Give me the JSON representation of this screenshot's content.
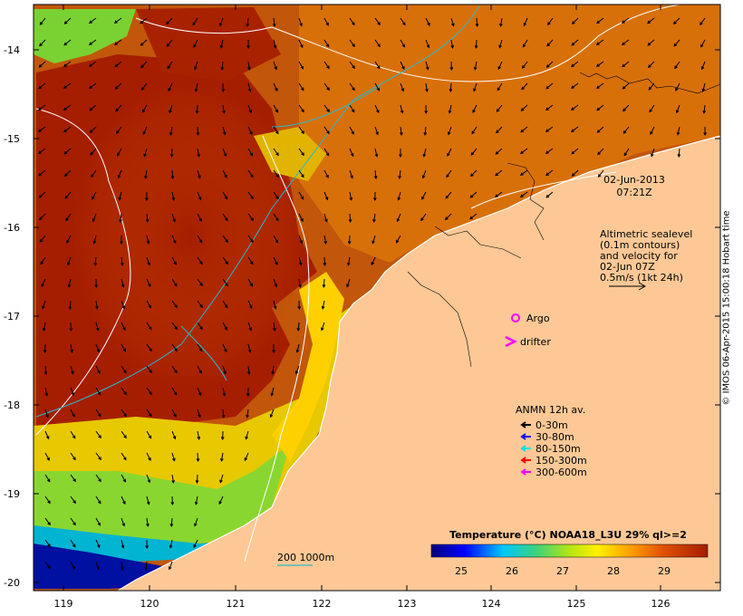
{
  "map": {
    "lat_ticks": [
      "-14",
      "-15",
      "-16",
      "-17",
      "-18",
      "-19",
      "-20"
    ],
    "lon_ticks": [
      "119",
      "120",
      "121",
      "122",
      "123",
      "124",
      "125",
      "126"
    ]
  },
  "annotations": {
    "date": "02-Jun-2013",
    "time": "07:21Z",
    "altimetry": [
      "Altimetric sealevel",
      "(0.1m contours)",
      "and velocity for",
      "02-Jun 07Z",
      "0.5m/s (1kt 24h)"
    ],
    "argo": "Argo",
    "drifter": "drifter"
  },
  "anmn": {
    "title": "ANMN 12h av.",
    "items": [
      {
        "label": "0-30m",
        "color": "#000000"
      },
      {
        "label": "30-80m",
        "color": "#0000ff"
      },
      {
        "label": "80-150m",
        "color": "#00e0e0"
      },
      {
        "label": "150-300m",
        "color": "#ff0000"
      },
      {
        "label": "300-600m",
        "color": "#ff00ff"
      }
    ]
  },
  "colorbar": {
    "title": "Temperature (°C) NOAA18_L3U 29% ql>=2",
    "ticks": [
      "25",
      "26",
      "27",
      "28",
      "29"
    ]
  },
  "scale": "200  1000m",
  "credit": "© IMOS 06-Apr-2015 15:00:18 Hobart time",
  "colors": {
    "land": "#fdc896",
    "deep_sst": "#a51e00",
    "coast": "#ffffff",
    "contour": "#ffffff",
    "bathy": "#2ab8c8"
  }
}
